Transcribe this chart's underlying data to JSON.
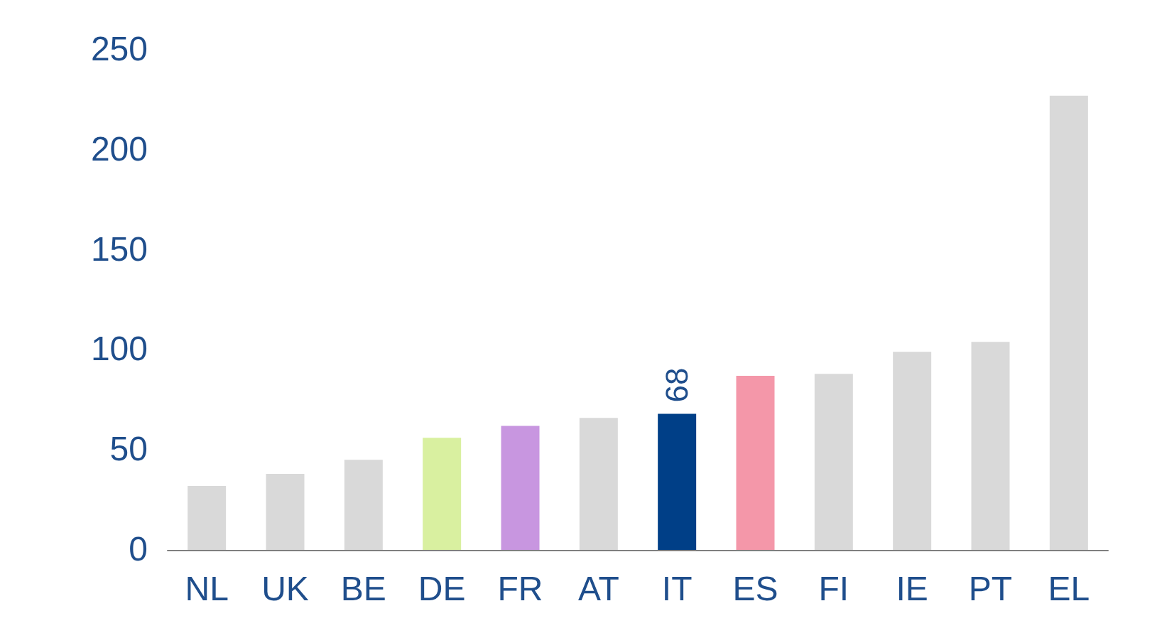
{
  "chart_data": {
    "type": "bar",
    "categories": [
      "NL",
      "UK",
      "BE",
      "DE",
      "FR",
      "AT",
      "IT",
      "ES",
      "FI",
      "IE",
      "PT",
      "EL"
    ],
    "values": [
      32,
      38,
      45,
      56,
      62,
      66,
      68,
      87,
      88,
      99,
      104,
      227
    ],
    "colors": [
      "#d9d9d9",
      "#d9d9d9",
      "#d9d9d9",
      "#d9f0a0",
      "#c896e0",
      "#d9d9d9",
      "#003f87",
      "#f497a9",
      "#d9d9d9",
      "#d9d9d9",
      "#d9d9d9",
      "#d9d9d9"
    ],
    "value_labels": [
      null,
      null,
      null,
      null,
      null,
      null,
      "68",
      null,
      null,
      null,
      null,
      null
    ],
    "ylim": [
      0,
      250
    ],
    "yticks": [
      0,
      50,
      100,
      150,
      200,
      250
    ],
    "grid": false
  }
}
